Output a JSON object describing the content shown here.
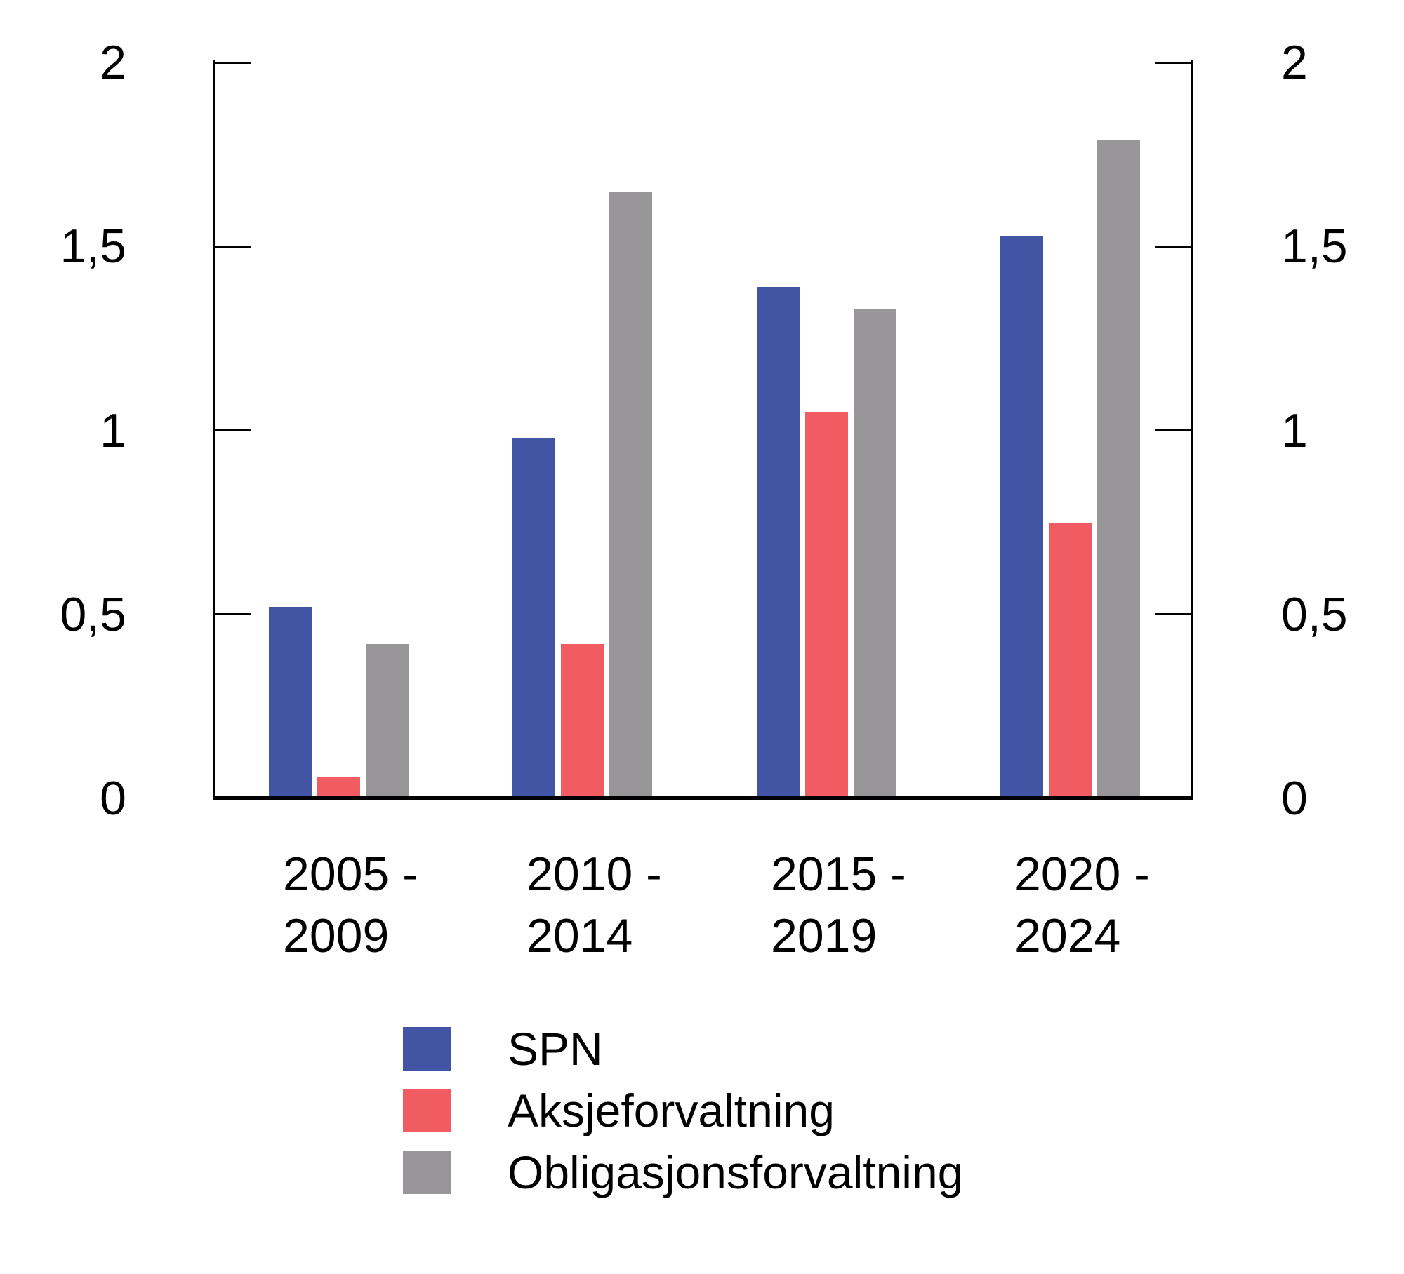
{
  "chart_data": {
    "type": "bar",
    "title": "",
    "categories": [
      "2005 - 2009",
      "2010 - 2014",
      "2015 - 2019",
      "2020 - 2024"
    ],
    "category_lines": [
      [
        "2005 -",
        "2009"
      ],
      [
        "2010 -",
        "2014"
      ],
      [
        "2015 -",
        "2019"
      ],
      [
        "2020 -",
        "2024"
      ]
    ],
    "series": [
      {
        "name": "SPN",
        "color": "#4255A4",
        "values": [
          0.52,
          0.98,
          1.39,
          1.53
        ]
      },
      {
        "name": "Aksjeforvaltning",
        "color": "#F15C63",
        "values": [
          0.06,
          0.42,
          1.05,
          0.75
        ]
      },
      {
        "name": "Obligasjonsforvaltning",
        "color": "#999699",
        "values": [
          0.42,
          1.65,
          1.33,
          1.79
        ]
      }
    ],
    "xlabel": "",
    "ylabel": "",
    "ylim": [
      0,
      2
    ],
    "yticks": [
      0,
      0.5,
      1,
      1.5,
      2
    ],
    "ytick_labels": [
      "0",
      "0,5",
      "1",
      "1,5",
      "2"
    ],
    "y_axis_sides": [
      "left",
      "right"
    ],
    "grid": false,
    "legend_position": "bottom-left",
    "axis_color": "#000000",
    "background_color": "#FFFFFF"
  }
}
